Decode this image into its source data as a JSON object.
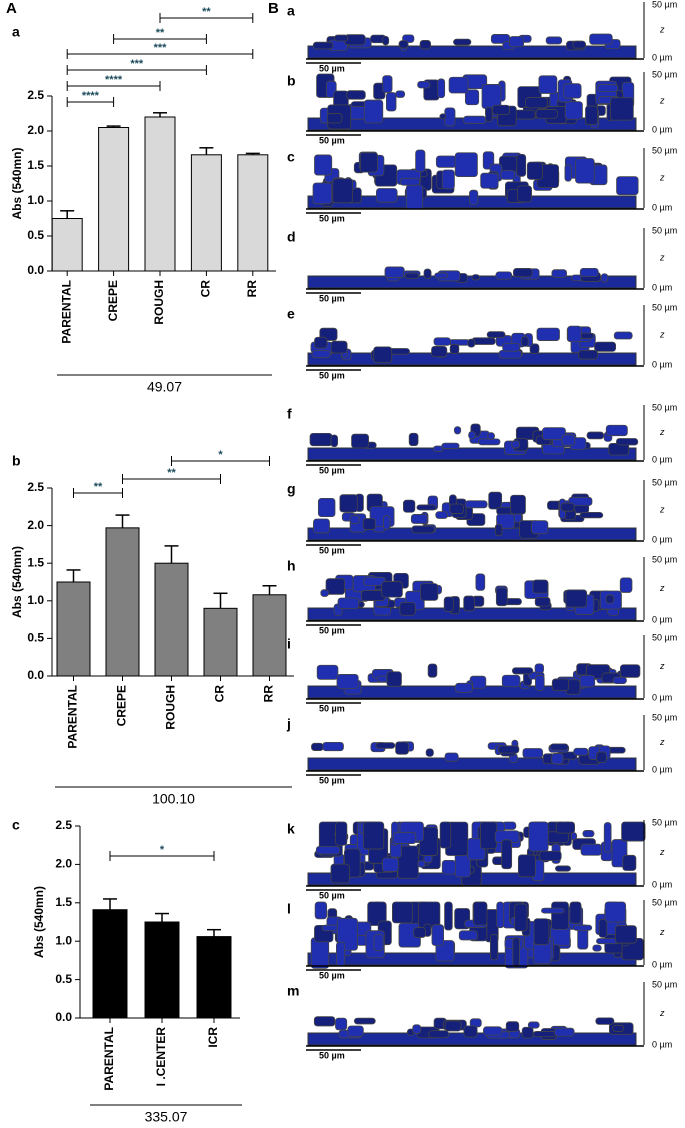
{
  "panels": [
    "A",
    "B"
  ],
  "chart_data": [
    {
      "type": "bar",
      "panel": "a",
      "y_label": "Abs (540mn)",
      "footer": "49.07",
      "categories": [
        "PARENTAL",
        "CREPE",
        "ROUGH",
        "CR",
        "RR"
      ],
      "series": [
        {
          "color": "#d9d9d9",
          "values": [
            0.75,
            2.05,
            2.2,
            1.66,
            1.66
          ],
          "errors": [
            0.11,
            0.02,
            0.06,
            0.1,
            0.02
          ]
        }
      ],
      "ylim": [
        0,
        2.5
      ],
      "yticks": [
        {
          "value": 0,
          "label": "0.0"
        },
        0.5,
        {
          "value": 1,
          "label": "1.0"
        },
        1.5,
        {
          "value": 2,
          "label": "2.0"
        },
        2.5
      ],
      "significance": [
        {
          "from": 0,
          "to": 1,
          "label": "****"
        },
        {
          "from": 0,
          "to": 2,
          "label": "****"
        },
        {
          "from": 0,
          "to": 3,
          "label": "***"
        },
        {
          "from": 0,
          "to": 4,
          "label": "***"
        },
        {
          "from": 1,
          "to": 3,
          "label": "**"
        },
        {
          "from": 2,
          "to": 4,
          "label": "**"
        }
      ]
    },
    {
      "type": "bar",
      "panel": "b",
      "y_label": "Abs (540mn)",
      "footer": "100.10",
      "categories": [
        "PARENTAL",
        "CREPE",
        "ROUGH",
        "CR",
        "RR"
      ],
      "series": [
        {
          "color": "#808080",
          "values": [
            1.25,
            1.97,
            1.5,
            0.9,
            1.08
          ],
          "errors": [
            0.16,
            0.17,
            0.23,
            0.2,
            0.12
          ]
        }
      ],
      "ylim": [
        0,
        2.5
      ],
      "yticks": [
        {
          "value": 0,
          "label": "0.0"
        },
        0.5,
        {
          "value": 1,
          "label": "1.0"
        },
        1.5,
        {
          "value": 2,
          "label": "2.0"
        },
        2.5
      ],
      "significance": [
        {
          "from": 0,
          "to": 1,
          "label": "**"
        },
        {
          "from": 1,
          "to": 3,
          "label": "**"
        },
        {
          "from": 2,
          "to": 4,
          "label": "*"
        }
      ]
    },
    {
      "type": "bar",
      "panel": "c",
      "y_label": "Abs (540mn)",
      "footer": "335.07",
      "categories": [
        "PARENTAL",
        "I .CENTER",
        "ICR"
      ],
      "series": [
        {
          "color": "#000000",
          "values": [
            1.41,
            1.25,
            1.06
          ],
          "errors": [
            0.14,
            0.11,
            0.09
          ]
        }
      ],
      "ylim": [
        0,
        2.5
      ],
      "yticks": [
        {
          "value": 0,
          "label": "0.0"
        },
        0.5,
        {
          "value": 1,
          "label": "1.0"
        },
        1.5,
        {
          "value": 2,
          "label": "2.0"
        },
        2.5
      ],
      "significance": [
        {
          "from": 0,
          "to": 2,
          "label": "*"
        }
      ]
    }
  ],
  "images": {
    "scale_label": "50 µm",
    "z_top": "50 µm",
    "z_label": "z",
    "z_bottom": "0 µm",
    "rows": [
      "a",
      "b",
      "c",
      "d",
      "e",
      "f",
      "g",
      "h",
      "i",
      "j",
      "k",
      "l",
      "m"
    ]
  }
}
